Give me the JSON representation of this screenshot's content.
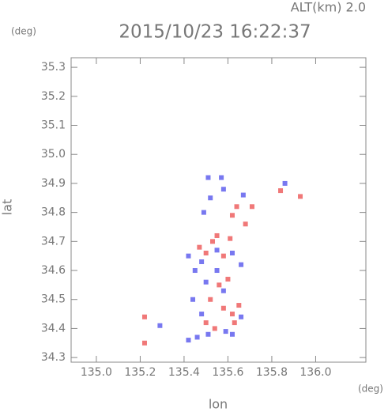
{
  "chart_data": {
    "type": "scatter",
    "title": "2015/10/23 16:22:37",
    "annotation": "ALT(km) 2.0",
    "x_label": "lon",
    "y_label": "lat",
    "x_unit": "(deg)",
    "y_unit": "(deg)",
    "xlim": [
      134.885,
      136.229
    ],
    "ylim": [
      34.284,
      35.333
    ],
    "xticks": [
      {
        "value": 135,
        "label": "135.0"
      },
      135.2,
      135.4,
      135.6,
      135.8,
      {
        "value": 136,
        "label": "136.0"
      }
    ],
    "yticks": [
      34.3,
      34.4,
      34.5,
      34.6,
      34.7,
      34.8,
      34.9,
      {
        "value": 35,
        "label": "35.0"
      },
      35.1,
      35.2,
      35.3
    ],
    "series": [
      {
        "color": "#f07878",
        "x": [
          135.22,
          135.22,
          135.93,
          135.84,
          135.71,
          135.64,
          135.62,
          135.55,
          135.53,
          135.5,
          135.58,
          135.6,
          135.56,
          135.52,
          135.58,
          135.62,
          135.65,
          135.54,
          135.63,
          135.5,
          135.47,
          135.61,
          135.68
        ],
        "values": [
          34.44,
          34.35,
          34.855,
          34.875,
          34.82,
          34.82,
          34.79,
          34.72,
          34.7,
          34.66,
          34.65,
          34.57,
          34.55,
          34.5,
          34.47,
          34.45,
          34.48,
          34.4,
          34.42,
          34.42,
          34.68,
          34.71,
          34.76
        ]
      },
      {
        "color": "#7878f0",
        "x": [
          135.29,
          135.42,
          135.46,
          135.51,
          135.59,
          135.52,
          135.49,
          135.58,
          135.67,
          135.51,
          135.57,
          135.86,
          135.42,
          135.45,
          135.48,
          135.55,
          135.62,
          135.66,
          135.5,
          135.55,
          135.44,
          135.58,
          135.66,
          135.48,
          135.62
        ],
        "values": [
          34.41,
          34.36,
          34.37,
          34.38,
          34.39,
          34.85,
          34.8,
          34.88,
          34.86,
          34.92,
          34.92,
          34.9,
          34.65,
          34.6,
          34.63,
          34.67,
          34.66,
          34.62,
          34.56,
          34.6,
          34.5,
          34.53,
          34.44,
          34.45,
          34.38
        ]
      }
    ]
  }
}
